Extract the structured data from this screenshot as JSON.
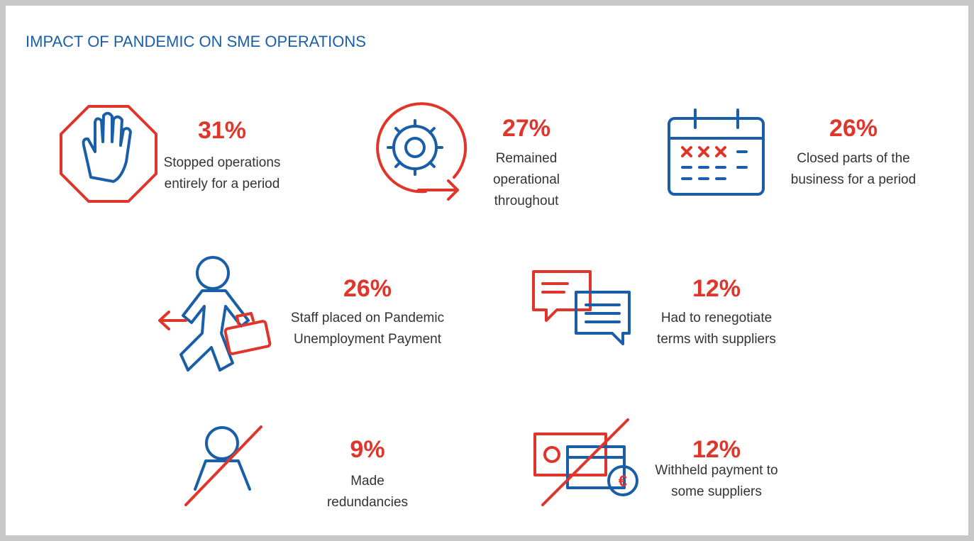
{
  "header": {
    "title": "IMPACT OF PANDEMIC ON SME OPERATIONS"
  },
  "items": [
    {
      "value": "31%",
      "lines": [
        "Stopped operations",
        "entirely for a period"
      ]
    },
    {
      "value": "27%",
      "lines": [
        "Remained",
        "operational",
        "throughout"
      ]
    },
    {
      "value": "26%",
      "lines": [
        "Closed parts of the",
        "business for a period"
      ]
    },
    {
      "value": "26%",
      "lines": [
        "Staff placed on Pandemic",
        "Unemployment Payment"
      ]
    },
    {
      "value": "12%",
      "lines": [
        "Had to renegotiate",
        "terms with suppliers"
      ]
    },
    {
      "value": "9%",
      "lines": [
        "Made",
        "redundancies"
      ]
    },
    {
      "value": "12%",
      "lines": [
        "Withheld payment to",
        "some suppliers"
      ]
    }
  ]
}
